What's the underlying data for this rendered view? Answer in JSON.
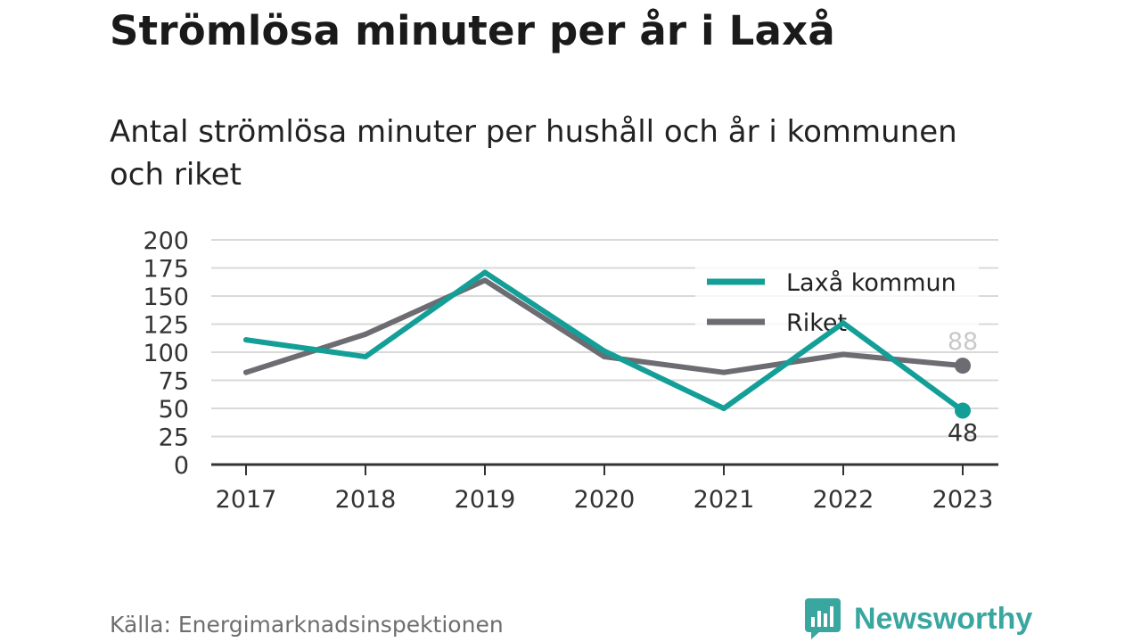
{
  "header": {
    "title": "Strömlösa minuter per år i Laxå",
    "subtitle": "Antal strömlösa minuter per hushåll och år i kommunen och riket"
  },
  "footer": {
    "source": "Källa: Energimarknadsinspektionen",
    "brand": "Newsworthy",
    "brand_icon": "bar-chart-bubble-icon"
  },
  "colors": {
    "laxa": "#139f97",
    "riket": "#6d6c72",
    "grid": "#d9d9d9",
    "axis": "#333333",
    "brand": "#3aa6a0"
  },
  "chart_data": {
    "type": "line",
    "x": [
      "2017",
      "2018",
      "2019",
      "2020",
      "2021",
      "2022",
      "2023"
    ],
    "ylim": [
      0,
      200
    ],
    "yticks": [
      0,
      25,
      50,
      75,
      100,
      125,
      150,
      175,
      200
    ],
    "grid": true,
    "legend_position": "top-right",
    "series": [
      {
        "name": "Laxå kommun",
        "values": [
          111,
          96,
          171,
          101,
          50,
          126,
          48
        ],
        "end_label": "48"
      },
      {
        "name": "Riket",
        "values": [
          82,
          116,
          164,
          96,
          82,
          98,
          88
        ],
        "end_label": "88"
      }
    ]
  }
}
